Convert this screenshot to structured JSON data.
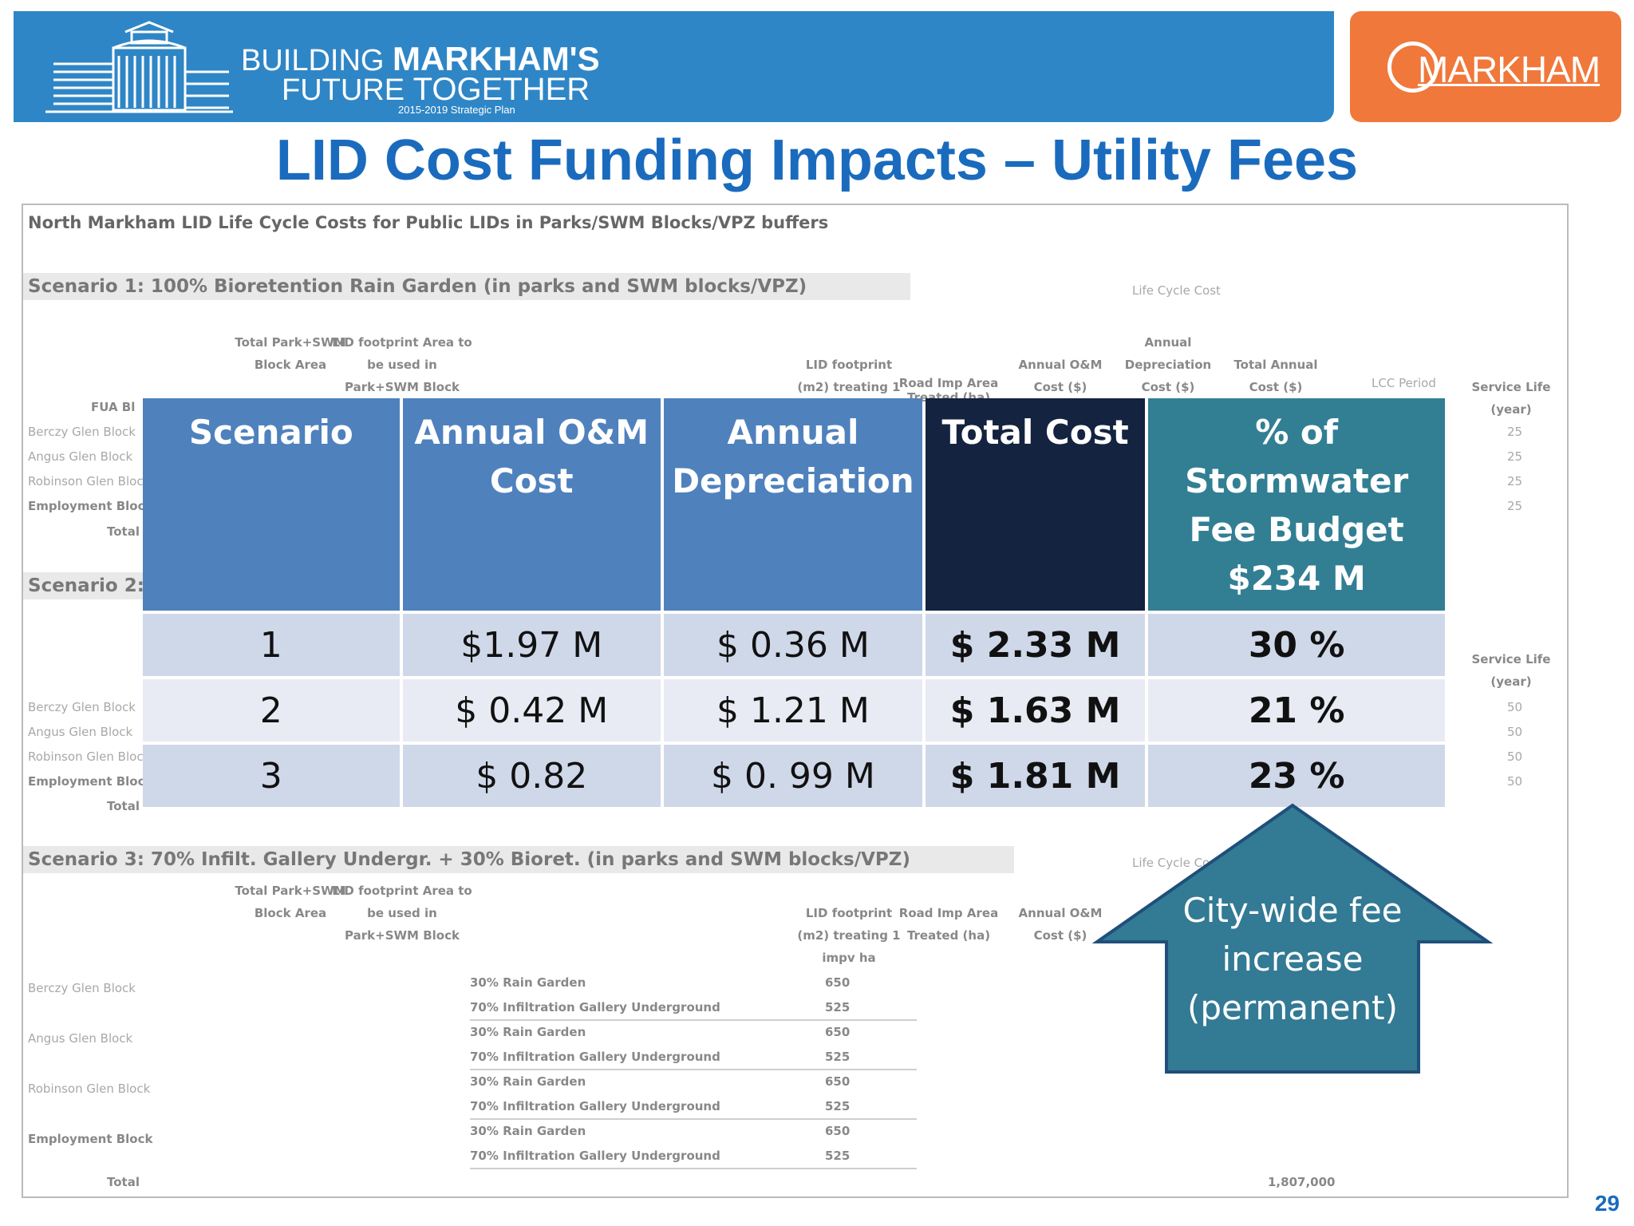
{
  "header": {
    "logo_line1_a": "BUILDING ",
    "logo_line1_b": "MARKHAM'S",
    "logo_line2_a": "FUTURE ",
    "logo_line2_b": "TOGETHER",
    "logo_sub": "2015-2019 Strategic Plan",
    "city_logo": "MARKHAM",
    "colors": {
      "blue_banner": "#2f86c6",
      "orange_banner": "#f0783a"
    }
  },
  "title": "LID Cost Funding Impacts – Utility Fees",
  "background_sheet": {
    "heading": "North Markham LID Life Cycle Costs for Public LIDs in Parks/SWM Blocks/VPZ buffers",
    "scenario1": "Scenario 1: 100% Bioretention Rain Garden (in parks and SWM blocks/VPZ)",
    "scenario2": "Scenario 2:",
    "scenario3": "Scenario 3: 70% Infilt. Gallery Undergr. + 30% Bioret. (in parks and SWM blocks/VPZ)",
    "life_cycle_cost": "Life Cycle Cost",
    "col_total_park_swm": "Total Park+SWM Block Area",
    "col_lid_footprint_area": "LID footprint Area to be used in Park+SWM Block",
    "col_lid_footprint_treating": "LID footprint (m2) treating 1 impv ha",
    "col_road_imp_area": "Road Imp Area Treated (ha)",
    "col_annual_om": "Annual O&M Cost ($)",
    "col_annual_dep": "Annual Depreciation Cost ($)",
    "col_total_annual": "Total Annual Cost ($)",
    "col_lcc_period": "LCC Period",
    "col_service_life": "Service Life (year)",
    "fua_block": "FUA Bl",
    "blocks": [
      "Berczy Glen Block",
      "Angus Glen Block",
      "Robinson Glen Block",
      "Employment Block"
    ],
    "total_label": "Total",
    "lid_types": [
      "30% Rain Garden",
      "70% Infiltration Gallery Underground",
      "30% Rain Garden",
      "70% Infiltration Gallery Underground",
      "30% Rain Garden",
      "70% Infiltration Gallery Underground",
      "30% Rain Garden",
      "70% Infiltration Gallery Underground"
    ],
    "footprints": [
      "650",
      "525",
      "650",
      "525",
      "650",
      "525",
      "650",
      "525"
    ],
    "service_life_s1": [
      "25",
      "25",
      "25",
      "25"
    ],
    "service_life_s2": [
      "50",
      "50",
      "50",
      "50"
    ],
    "grand_total": "1,807,000"
  },
  "table": {
    "headers": [
      "Scenario",
      "Annual O&M Cost",
      "Annual Depreciation",
      "Total Cost",
      "% of Stormwater Fee Budget $234 M"
    ],
    "rows": [
      {
        "scenario": "1",
        "om": "$1.97 M",
        "dep": "$ 0.36 M",
        "total": "$ 2.33 M",
        "pct": "30 %"
      },
      {
        "scenario": "2",
        "om": "$ 0.42 M",
        "dep": "$ 1.21 M",
        "total": "$ 1.63 M",
        "pct": "21 %"
      },
      {
        "scenario": "3",
        "om": "$ 0.82",
        "dep": "$ 0. 99 M",
        "total": "$ 1.81 M",
        "pct": "23 %"
      }
    ],
    "colors": {
      "header_blue": "#4f81bd",
      "header_navy": "#14233f",
      "header_teal": "#327f94"
    }
  },
  "callout": {
    "line1": "City-wide fee",
    "line2": "increase",
    "line3": "(permanent)",
    "color": "#337a94"
  },
  "page_number": "29"
}
